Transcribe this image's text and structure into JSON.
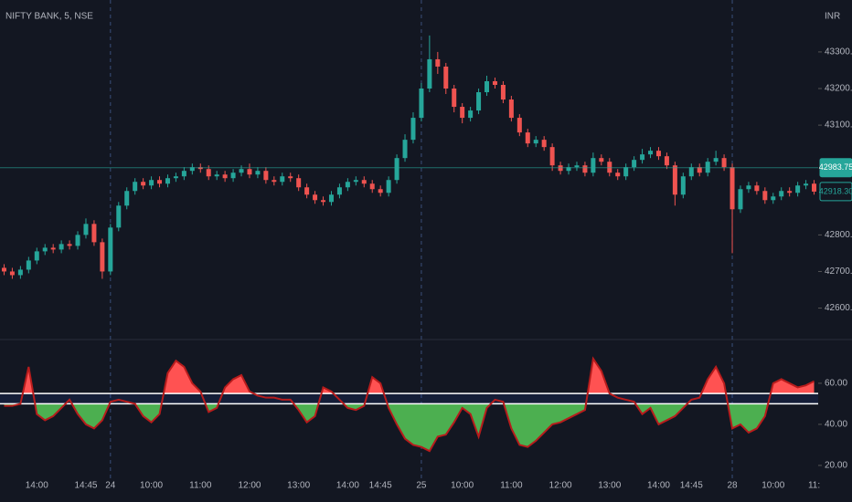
{
  "chart_data": [
    {
      "type": "candlestick",
      "title": "NIFTY BANK, 5, NSE",
      "currency": "INR",
      "categories": [
        null,
        null,
        null,
        null,
        "14:00",
        null,
        null,
        null,
        null,
        null,
        "14:45",
        null,
        null,
        "24",
        null,
        null,
        null,
        null,
        "10:00",
        null,
        null,
        null,
        null,
        null,
        "11:00",
        null,
        null,
        null,
        null,
        null,
        "12:00",
        null,
        null,
        null,
        null,
        null,
        "13:00",
        null,
        null,
        null,
        null,
        null,
        "14:00",
        null,
        null,
        null,
        "14:45",
        null,
        null,
        null,
        null,
        "25",
        null,
        null,
        null,
        null,
        "10:00",
        null,
        null,
        null,
        null,
        null,
        "11:00",
        null,
        null,
        null,
        null,
        null,
        "12:00",
        null,
        null,
        null,
        null,
        null,
        "13:00",
        null,
        null,
        null,
        null,
        null,
        "14:00",
        null,
        null,
        null,
        "14:45",
        null,
        null,
        null,
        null,
        "28",
        null,
        null,
        null,
        null,
        "10:00",
        null,
        null,
        null,
        null,
        "11:"
      ],
      "open": [
        42710,
        42700,
        42690,
        42705,
        42730,
        42755,
        42765,
        42760,
        42775,
        42770,
        42800,
        42830,
        42780,
        42700,
        42820,
        42880,
        42920,
        42945,
        42935,
        42950,
        42940,
        42955,
        42960,
        42975,
        42985,
        42980,
        42960,
        42965,
        42955,
        42970,
        42980,
        42965,
        42975,
        42950,
        42945,
        42960,
        42955,
        42930,
        42910,
        42895,
        42890,
        42910,
        42930,
        42945,
        42950,
        42940,
        42925,
        42915,
        42950,
        43010,
        43060,
        43120,
        43200,
        43280,
        43260,
        43200,
        43150,
        43120,
        43140,
        43190,
        43220,
        43210,
        43170,
        43120,
        43080,
        43050,
        43060,
        43040,
        42990,
        42975,
        42985,
        42990,
        42970,
        43010,
        43000,
        42970,
        42960,
        42985,
        43005,
        43020,
        43030,
        43015,
        42990,
        42910,
        42960,
        42985,
        42970,
        43000,
        43010,
        42985,
        42870,
        42925,
        42935,
        42920,
        42895,
        42905,
        42920,
        42915,
        42935,
        42940
      ],
      "high": [
        42720,
        42710,
        42715,
        42740,
        42765,
        42775,
        42775,
        42785,
        42785,
        42810,
        42845,
        42840,
        42790,
        42830,
        42890,
        42930,
        42955,
        42955,
        42960,
        42960,
        42965,
        42970,
        42985,
        42995,
        42995,
        42990,
        42975,
        42975,
        42980,
        42990,
        42995,
        42985,
        42985,
        42960,
        42970,
        42970,
        42965,
        42940,
        42920,
        42905,
        42920,
        42940,
        42955,
        42960,
        42960,
        42950,
        42935,
        42960,
        43020,
        43075,
        43135,
        43215,
        43345,
        43300,
        43270,
        43210,
        43160,
        43150,
        43200,
        43235,
        43230,
        43220,
        43180,
        43130,
        43090,
        43070,
        43070,
        43050,
        43000,
        42995,
        43000,
        43000,
        43025,
        43020,
        43010,
        42980,
        42995,
        43015,
        43035,
        43040,
        43040,
        43025,
        43000,
        42970,
        42995,
        42995,
        43010,
        43030,
        43020,
        42995,
        42935,
        42945,
        42945,
        42930,
        42915,
        42930,
        42930,
        42945,
        42950,
        42950
      ],
      "low": [
        42690,
        42680,
        42680,
        42695,
        42720,
        42745,
        42750,
        42750,
        42760,
        42760,
        42790,
        42770,
        42680,
        42690,
        42810,
        42870,
        42910,
        42925,
        42925,
        42930,
        42930,
        42945,
        42950,
        42965,
        42970,
        42950,
        42950,
        42945,
        42945,
        42960,
        42955,
        42955,
        42940,
        42935,
        42935,
        42945,
        42920,
        42900,
        42885,
        42880,
        42880,
        42900,
        42920,
        42935,
        42930,
        42915,
        42905,
        42905,
        42940,
        43000,
        43050,
        43110,
        43190,
        43240,
        43185,
        43135,
        43105,
        43110,
        43130,
        43180,
        43200,
        43160,
        43110,
        43070,
        43040,
        43040,
        43030,
        42975,
        42965,
        42965,
        42975,
        42960,
        42960,
        42990,
        42960,
        42950,
        42950,
        42975,
        42995,
        43010,
        43005,
        42980,
        42880,
        42900,
        42950,
        42960,
        42960,
        42990,
        42975,
        42750,
        42860,
        42915,
        42910,
        42885,
        42885,
        42895,
        42905,
        42905,
        42925,
        42910
      ],
      "close": [
        42700,
        42690,
        42705,
        42730,
        42755,
        42765,
        42760,
        42775,
        42770,
        42800,
        42830,
        42780,
        42700,
        42820,
        42880,
        42920,
        42945,
        42935,
        42950,
        42940,
        42955,
        42960,
        42975,
        42985,
        42980,
        42960,
        42965,
        42955,
        42970,
        42980,
        42965,
        42975,
        42950,
        42945,
        42960,
        42955,
        42930,
        42910,
        42895,
        42890,
        42910,
        42930,
        42945,
        42950,
        42940,
        42925,
        42915,
        42950,
        43010,
        43060,
        43120,
        43200,
        43280,
        43260,
        43200,
        43150,
        43120,
        43140,
        43190,
        43220,
        43210,
        43170,
        43120,
        43080,
        43050,
        43060,
        43040,
        42990,
        42975,
        42985,
        42990,
        42970,
        43010,
        43000,
        42970,
        42960,
        42985,
        43005,
        43020,
        43030,
        43015,
        42990,
        42910,
        42960,
        42985,
        42970,
        43000,
        43010,
        42985,
        42870,
        42925,
        42935,
        42920,
        42895,
        42905,
        42920,
        42915,
        42935,
        42940,
        42918.3
      ],
      "up_color": "#26a69a",
      "down_color": "#ef5350",
      "ylim": [
        42514,
        43442
      ],
      "yticks": [
        {
          "value": 43300,
          "label": "43300.00"
        },
        {
          "value": 43200,
          "label": "43200.00"
        },
        {
          "value": 43100,
          "label": "43100.00"
        },
        {
          "value": 42800,
          "label": "42800.00"
        },
        {
          "value": 42700,
          "label": "42700.00"
        },
        {
          "value": 42600,
          "label": "42600.00"
        }
      ],
      "price_lines": [
        42983.75,
        {
          "value": 42918.3,
          "label": "42918.30"
        }
      ]
    },
    {
      "type": "oscillator",
      "values": [
        49,
        49,
        50,
        68,
        45,
        42,
        44,
        48,
        52,
        45,
        40,
        38,
        42,
        51,
        52,
        51,
        50,
        44,
        41,
        45,
        65,
        71,
        68,
        60,
        56,
        46,
        48,
        58,
        62,
        64,
        56,
        54,
        53,
        53,
        52,
        52,
        47,
        41,
        44,
        58,
        56,
        52,
        48,
        47,
        49,
        63,
        60,
        48,
        40,
        33,
        30,
        29,
        27,
        34,
        35,
        41,
        48,
        45,
        34,
        48,
        52,
        51,
        38,
        30,
        29,
        32,
        36,
        40,
        41,
        43,
        45,
        47,
        72,
        66,
        55,
        53,
        52,
        51,
        45,
        48,
        40,
        42,
        44,
        48,
        52,
        53,
        62,
        68,
        60,
        38,
        40,
        36,
        38,
        44,
        60,
        62,
        60,
        58,
        59,
        61
      ],
      "levels": [
        55,
        50
      ],
      "line_color": "#b71c1c",
      "above_color": "#ff5252",
      "below_color": "#4caf50",
      "ylim": [
        13.3,
        81.3
      ],
      "yticks": [
        {
          "value": 60,
          "label": "60.00"
        },
        {
          "value": 40,
          "label": "40.00"
        },
        {
          "value": 20,
          "label": "20.00"
        }
      ]
    }
  ]
}
